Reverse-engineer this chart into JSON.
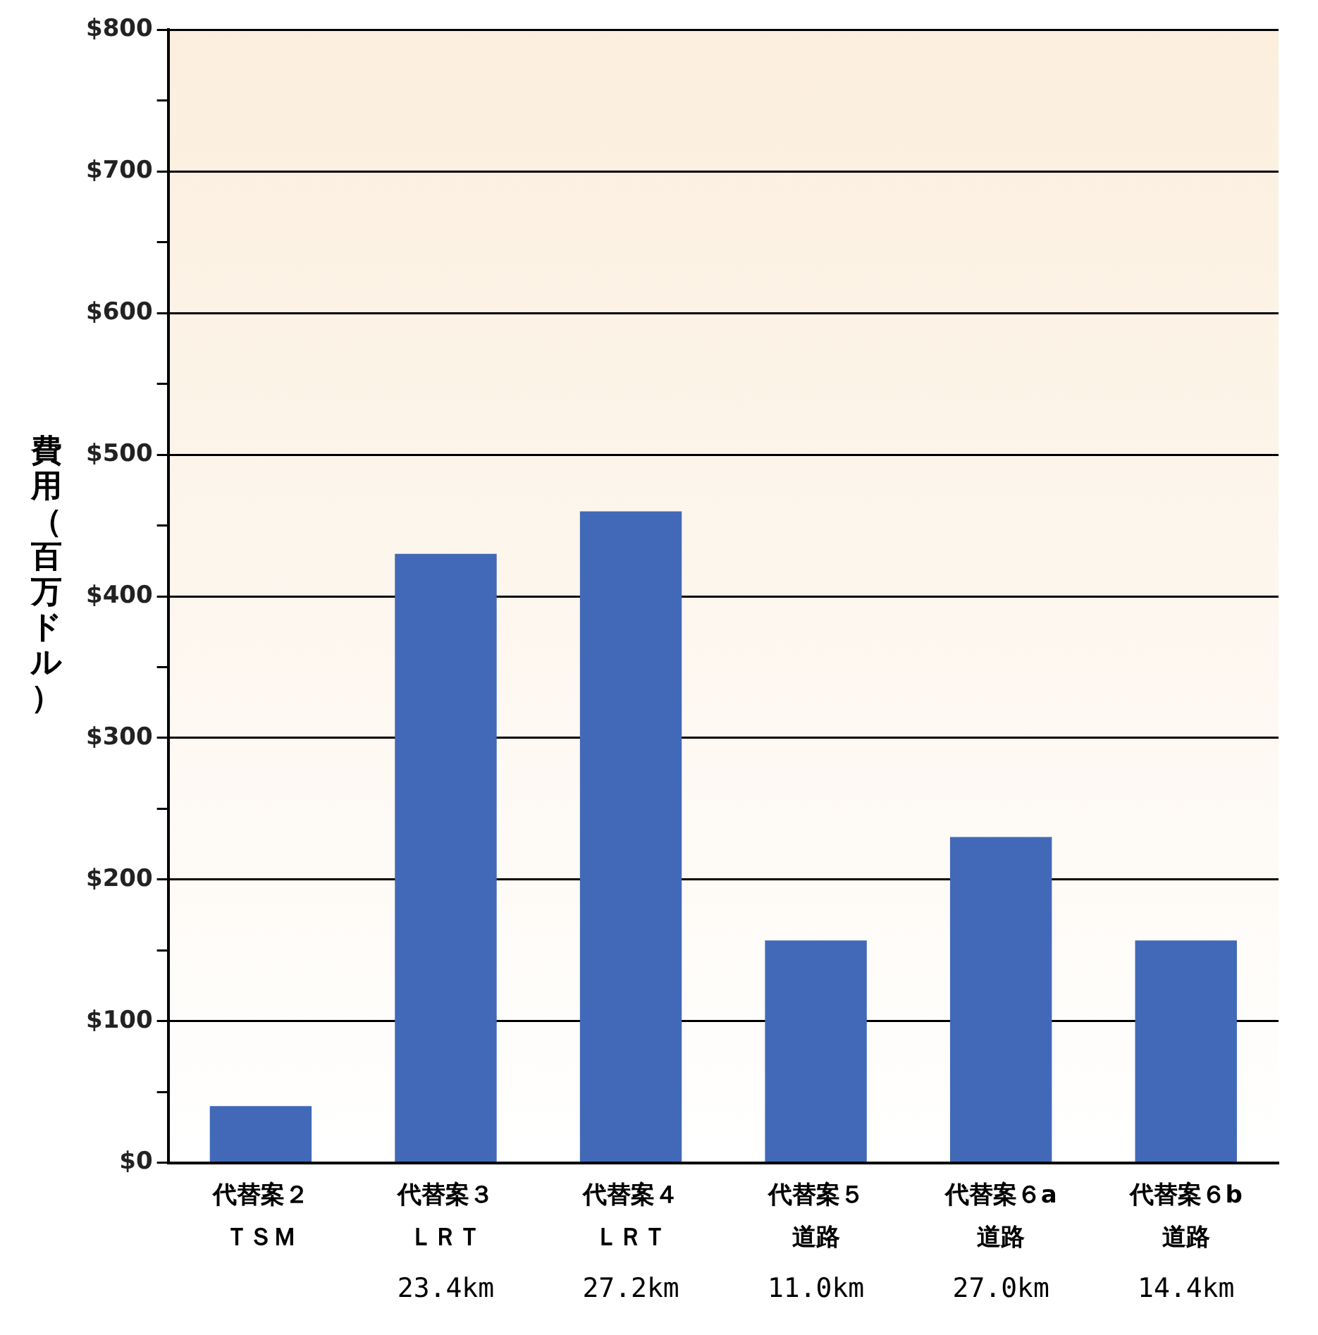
{
  "chart_data": {
    "type": "bar",
    "ylabel": "費用（百万ドル）",
    "categories": [
      "代替案２ＴＳＭ",
      "代替案３ＬＲＴ",
      "代替案４ＬＲＴ",
      "代替案５道路",
      "代替案６a道路",
      "代替案６b道路"
    ],
    "values": [
      40,
      430,
      460,
      157,
      230,
      157
    ],
    "color": "#4169b8",
    "ylim": [
      0,
      800
    ],
    "yticks": [
      {
        "value": 0,
        "label": "$0"
      },
      {
        "value": 50,
        "label": null
      },
      {
        "value": 100,
        "label": "$100"
      },
      {
        "value": 150,
        "label": null
      },
      {
        "value": 200,
        "label": "$200"
      },
      {
        "value": 250,
        "label": null
      },
      {
        "value": 300,
        "label": "$300"
      },
      {
        "value": 350,
        "label": null
      },
      {
        "value": 400,
        "label": "$400"
      },
      {
        "value": 450,
        "label": null
      },
      {
        "value": 500,
        "label": "$500"
      },
      {
        "value": 550,
        "label": null
      },
      {
        "value": 600,
        "label": "$600"
      },
      {
        "value": 650,
        "label": null
      },
      {
        "value": 700,
        "label": "$700"
      },
      {
        "value": 750,
        "label": null
      },
      {
        "value": 800,
        "label": "$800"
      }
    ],
    "annotations": [
      "23.4km",
      "27.2km",
      "11.0km",
      "27.0km",
      "14.4km"
    ],
    "grid": "y",
    "legend": false
  }
}
